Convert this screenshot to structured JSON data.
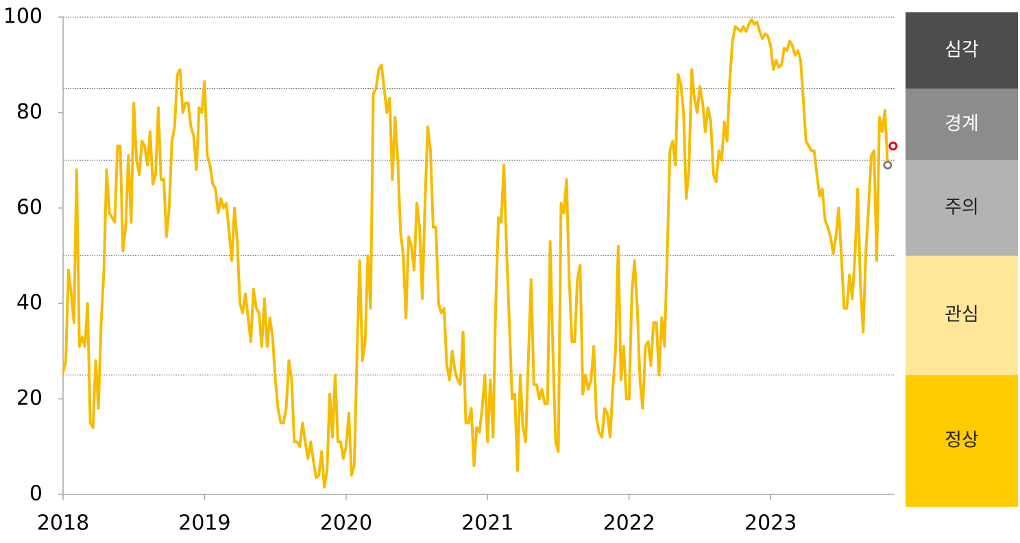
{
  "chart_data": {
    "type": "line",
    "color": "#f7bb00",
    "categories": [
      "2018",
      null,
      null,
      null,
      null,
      null,
      null,
      null,
      null,
      null,
      null,
      null,
      null,
      null,
      null,
      null,
      null,
      null,
      null,
      null,
      null,
      null,
      null,
      null,
      null,
      null,
      null,
      null,
      null,
      null,
      null,
      null,
      null,
      null,
      null,
      null,
      null,
      null,
      null,
      null,
      null,
      null,
      null,
      null,
      null,
      null,
      null,
      null,
      null,
      null,
      null,
      null,
      "2019",
      null,
      null,
      null,
      null,
      null,
      null,
      null,
      null,
      null,
      null,
      null,
      null,
      null,
      null,
      null,
      null,
      null,
      null,
      null,
      null,
      null,
      null,
      null,
      null,
      null,
      null,
      null,
      null,
      null,
      null,
      null,
      null,
      null,
      null,
      null,
      null,
      null,
      null,
      null,
      null,
      null,
      null,
      null,
      null,
      null,
      null,
      null,
      null,
      null,
      null,
      null,
      "2020",
      null,
      null,
      null,
      null,
      null,
      null,
      null,
      null,
      null,
      null,
      null,
      null,
      null,
      null,
      null,
      null,
      null,
      null,
      null,
      null,
      null,
      null,
      null,
      null,
      null,
      null,
      null,
      null,
      null,
      null,
      null,
      null,
      null,
      null,
      null,
      null,
      null,
      null,
      null,
      null,
      null,
      null,
      null,
      null,
      null,
      null,
      null,
      null,
      null,
      null,
      null,
      "2021",
      null,
      null,
      null,
      null,
      null,
      null,
      null,
      null,
      null,
      null,
      null,
      null,
      null,
      null,
      null,
      null,
      null,
      null,
      null,
      null,
      null,
      null,
      null,
      null,
      null,
      null,
      null,
      null,
      null,
      null,
      null,
      null,
      null,
      null,
      null,
      null,
      null,
      null,
      null,
      null,
      null,
      null,
      null,
      null,
      null,
      null,
      null,
      null,
      null,
      null,
      null,
      "2022",
      null,
      null,
      null,
      null,
      null,
      null,
      null,
      null,
      null,
      null,
      null,
      null,
      null,
      null,
      null,
      null,
      null,
      null,
      null,
      null,
      null,
      null,
      null,
      null,
      null,
      null,
      null,
      null,
      null,
      null,
      null,
      null,
      null,
      null,
      null,
      null,
      null,
      null,
      null,
      null,
      null,
      null,
      null,
      null,
      null,
      null,
      null,
      null,
      null,
      null,
      null,
      "2023",
      null,
      null,
      null,
      null,
      null,
      null,
      null,
      null,
      null,
      null,
      null,
      null,
      null,
      null,
      null,
      null,
      null,
      null,
      null,
      null,
      null,
      null,
      null,
      null,
      null,
      null,
      null,
      null,
      null,
      null,
      null,
      null,
      null,
      null,
      null,
      null,
      null,
      null,
      null,
      null,
      null,
      null,
      null
    ],
    "values": [
      25.5,
      28,
      47,
      42,
      36,
      68,
      31,
      33,
      31,
      40,
      15,
      14,
      28,
      18,
      36,
      47,
      68,
      59,
      58,
      57,
      73,
      73,
      51,
      56,
      71,
      57,
      82,
      70,
      67,
      74,
      73,
      69,
      76,
      65,
      67,
      81,
      66,
      66,
      54,
      60,
      74,
      77,
      88,
      89,
      80,
      82,
      82,
      77,
      75,
      68,
      81,
      80,
      86.5,
      71,
      69,
      65,
      64,
      59,
      62,
      60,
      61,
      55,
      49,
      60,
      53,
      40,
      38,
      42,
      37,
      32,
      43,
      39,
      38,
      31,
      41,
      31,
      37,
      33,
      24,
      18,
      15,
      15,
      18,
      28,
      24,
      11,
      11,
      10,
      15,
      11,
      7.5,
      11,
      7,
      3.5,
      4,
      9,
      1.5,
      5,
      21,
      12,
      25,
      11,
      11,
      7.5,
      10,
      17,
      4,
      6,
      29,
      49,
      28,
      32,
      50,
      39,
      84,
      85,
      89,
      90,
      85,
      80,
      83,
      66,
      79,
      70,
      55,
      50,
      37,
      54,
      52,
      47,
      61,
      56,
      41,
      61,
      77,
      72,
      56,
      56,
      40,
      38,
      39,
      27,
      24,
      30,
      26,
      24,
      23,
      34,
      15,
      15,
      18,
      6,
      14,
      13,
      18,
      25,
      11,
      24,
      12,
      40,
      58,
      57,
      69,
      51,
      36,
      20,
      21,
      5,
      25,
      14,
      11,
      29,
      45,
      23,
      23,
      20,
      22,
      19,
      19,
      53,
      30,
      11,
      9,
      61,
      59,
      66,
      45,
      32,
      32,
      45,
      48,
      21,
      25,
      22,
      24,
      31,
      16,
      13,
      12,
      18,
      17,
      12,
      22,
      30,
      52,
      24,
      31,
      20,
      20,
      42,
      49,
      39,
      24,
      18,
      31,
      32,
      27,
      36,
      36,
      25,
      37,
      31,
      50,
      72,
      74,
      69,
      88,
      86,
      80,
      62,
      68,
      89,
      83,
      80,
      85.5,
      82,
      76,
      81,
      78,
      67,
      65.5,
      72,
      70,
      78,
      74,
      87,
      95,
      98,
      97.5,
      97,
      98,
      97,
      98.5,
      99.5,
      98.5,
      99,
      97,
      95.5,
      96.5,
      96,
      94,
      89,
      91,
      89.5,
      90,
      93.5,
      93,
      95,
      94,
      92,
      93,
      91,
      83,
      74,
      73,
      72,
      72,
      67,
      62.5,
      64,
      57.5,
      56,
      54,
      50.5,
      54,
      60,
      50,
      39,
      39,
      46,
      41,
      50,
      64,
      44,
      34,
      51,
      60,
      71,
      72,
      49,
      79,
      76,
      80.5,
      69
    ],
    "ylim": [
      0,
      100
    ],
    "yticks": [
      0,
      20,
      40,
      60,
      80,
      100
    ],
    "markers": [
      {
        "x": 303,
        "value": 69,
        "color": "#808080"
      },
      {
        "x": 305,
        "value": 73,
        "color": "#e60012"
      }
    ],
    "zones": [
      {
        "name": "심각",
        "from": 85,
        "to": 100,
        "color": "#4d4d4d",
        "text_color": "#ffffff"
      },
      {
        "name": "경계",
        "from": 70,
        "to": 85,
        "color": "#8c8c8c",
        "text_color": "#ffffff"
      },
      {
        "name": "주의",
        "from": 50,
        "to": 70,
        "color": "#b3b3b3",
        "text_color": "#222222"
      },
      {
        "name": "관심",
        "from": 25,
        "to": 50,
        "color": "#ffe699",
        "text_color": "#222222"
      },
      {
        "name": "정상",
        "from": 0,
        "to": 25,
        "color": "#ffcc00",
        "text_color": "#222222"
      }
    ]
  }
}
